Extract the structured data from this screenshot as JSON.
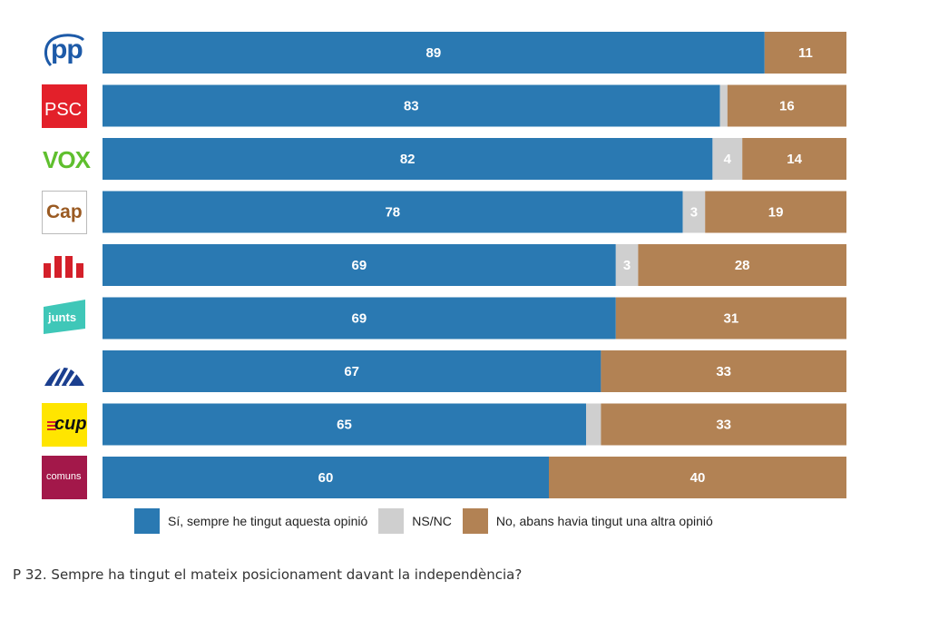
{
  "chart_data": {
    "type": "bar",
    "orientation": "horizontal",
    "stacked": true,
    "percent_scale": true,
    "xlim": [
      0,
      100
    ],
    "categories": [
      "PP",
      "PSC",
      "VOX",
      "Cap",
      "ERC",
      "Junts",
      "PDeCAT",
      "CUP",
      "Comuns"
    ],
    "series": [
      {
        "name": "Sí, sempre he tingut aquesta opinió",
        "color": "#2a79b2",
        "values": [
          89,
          83,
          82,
          78,
          69,
          69,
          67,
          65,
          60
        ],
        "labels": [
          "89",
          "83",
          "82",
          "78",
          "69",
          "69",
          "67",
          "65",
          "60"
        ]
      },
      {
        "name": "NS/NC",
        "color": "#cfcfcf",
        "values": [
          0,
          1,
          4,
          3,
          3,
          0,
          0,
          2,
          0
        ],
        "labels": [
          "",
          "",
          "4",
          "3",
          "3",
          "",
          "",
          "",
          ""
        ]
      },
      {
        "name": "No, abans havia tingut una altra opinió",
        "color": "#b28254",
        "values": [
          11,
          16,
          14,
          19,
          28,
          31,
          33,
          33,
          40
        ],
        "labels": [
          "11",
          "16",
          "14",
          "19",
          "28",
          "31",
          "33",
          "33",
          "40"
        ]
      }
    ],
    "legend_position": "bottom"
  },
  "logos": {
    "pp": {
      "text": "pp",
      "color": "#1d5aa8"
    },
    "psc": {
      "text": "PSC",
      "color": "#e3202a"
    },
    "vox": {
      "text": "VOX",
      "color": "#5fbf2e"
    },
    "cap": {
      "text": "Cap",
      "color": "#9a5a22"
    },
    "erc": {
      "icon": "erc-logo-icon",
      "color": "#d4202a"
    },
    "junts": {
      "text": "junts",
      "color": "#3fc7b8"
    },
    "pdecat": {
      "icon": "pdecat-logo-icon",
      "color": "#1b3f8f"
    },
    "cup": {
      "text": "cup",
      "color": "#ffe500"
    },
    "comuns": {
      "text": "comuns",
      "color": "#a3184a"
    }
  },
  "caption": "P 32. Sempre ha tingut el mateix posicionament davant la independència?"
}
